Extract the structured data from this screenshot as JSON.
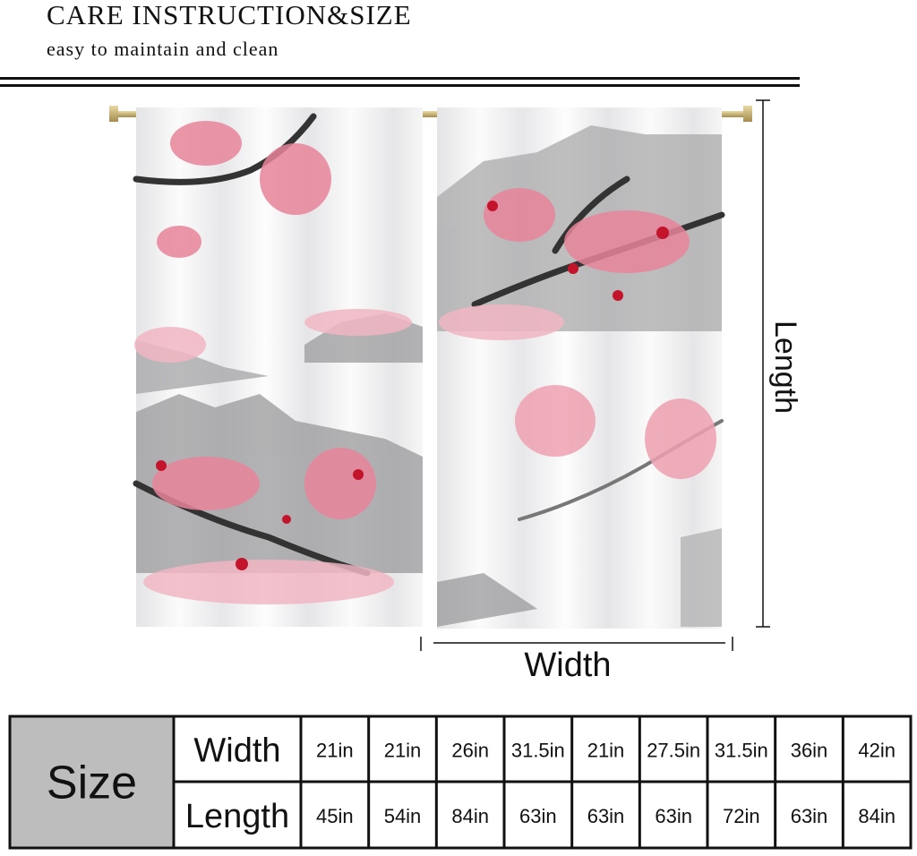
{
  "header": {
    "title": "CARE INSTRUCTION&SIZE",
    "subtitle": "easy to maintain and clean"
  },
  "dimensions": {
    "length": "Length",
    "width": "Width"
  },
  "table": {
    "corner": "Size",
    "rows": [
      {
        "label": "Width",
        "cells": [
          "21in",
          "21in",
          "26in",
          "31.5in",
          "21in",
          "27.5in",
          "31.5in",
          "36in",
          "42in"
        ]
      },
      {
        "label": "Length",
        "cells": [
          "45in",
          "54in",
          "84in",
          "63in",
          "63in",
          "63in",
          "72in",
          "63in",
          "84in"
        ]
      }
    ]
  }
}
